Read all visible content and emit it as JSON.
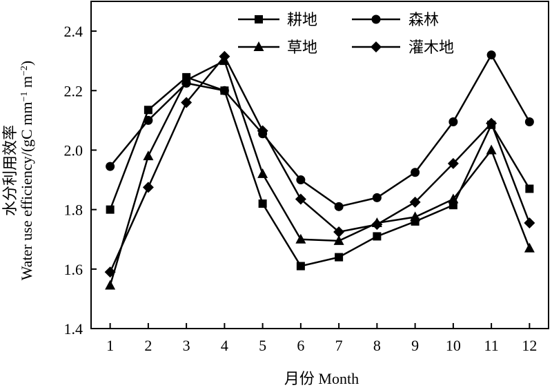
{
  "chart_data": {
    "type": "line",
    "x": [
      1,
      2,
      3,
      4,
      5,
      6,
      7,
      8,
      9,
      10,
      11,
      12
    ],
    "xlabel": "月份 Month",
    "ylabel_line1": "水分利用效率",
    "ylabel_line2_prefix": "Water use efficiency/(gC mm",
    "ylabel_line2_sup1": "−1",
    "ylabel_line2_mid": " m",
    "ylabel_line2_sup2": "−2",
    "ylabel_line2_suffix": ")",
    "xlim": [
      0.5,
      12.5
    ],
    "ylim": [
      1.4,
      2.5
    ],
    "yticks": [
      1.4,
      1.6,
      1.8,
      2.0,
      2.2,
      2.4
    ],
    "ytick_labels": [
      "1.4",
      "1.6",
      "1.8",
      "2.0",
      "2.2",
      "2.4"
    ],
    "xtick_labels": [
      "1",
      "2",
      "3",
      "4",
      "5",
      "6",
      "7",
      "8",
      "9",
      "10",
      "11",
      "12"
    ],
    "grid": false,
    "legend_position": "top",
    "series": [
      {
        "name": "耕地",
        "marker": "square",
        "values": [
          1.8,
          2.135,
          2.245,
          2.2,
          1.82,
          1.61,
          1.64,
          1.71,
          1.76,
          1.815,
          2.085,
          1.87
        ]
      },
      {
        "name": "森林",
        "marker": "circle",
        "values": [
          1.945,
          2.1,
          2.225,
          2.2,
          2.055,
          1.9,
          1.81,
          1.84,
          1.925,
          2.095,
          2.32,
          2.095
        ]
      },
      {
        "name": "草地",
        "marker": "triangle",
        "values": [
          1.545,
          1.98,
          2.235,
          2.3,
          1.92,
          1.7,
          1.695,
          1.755,
          1.775,
          1.835,
          2.0,
          1.67
        ]
      },
      {
        "name": "灌木地",
        "marker": "diamond",
        "values": [
          1.59,
          1.875,
          2.16,
          2.315,
          2.065,
          1.835,
          1.725,
          1.75,
          1.825,
          1.955,
          2.09,
          1.755
        ]
      }
    ]
  }
}
